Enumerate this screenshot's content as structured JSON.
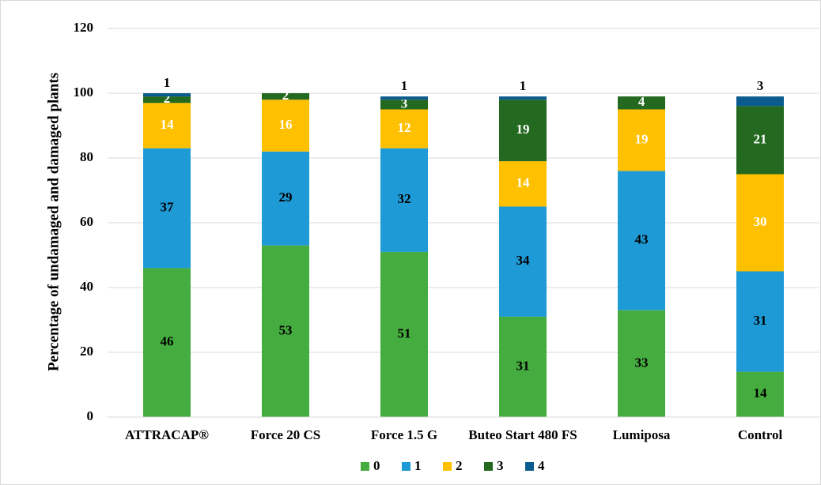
{
  "chart_data": {
    "type": "stacked_bar",
    "ylabel": "Percentage of undamaged and damaged plants",
    "categories": [
      "ATTRACAP®",
      "Force 20 CS",
      "Force 1.5 G",
      "Buteo Start 480 FS",
      "Lumiposa",
      "Control"
    ],
    "series": [
      {
        "name": "0",
        "color": "#45ac3f",
        "values": [
          46,
          53,
          51,
          31,
          33,
          14
        ]
      },
      {
        "name": "1",
        "color": "#1e9ad6",
        "values": [
          37,
          29,
          32,
          34,
          43,
          31
        ]
      },
      {
        "name": "2",
        "color": "#ffc000",
        "values": [
          14,
          16,
          12,
          14,
          19,
          30
        ]
      },
      {
        "name": "3",
        "color": "#23691f",
        "values": [
          2,
          2,
          3,
          19,
          4,
          21
        ]
      },
      {
        "name": "4",
        "color": "#0b5c8e",
        "values": [
          1,
          0,
          1,
          1,
          0,
          3
        ]
      }
    ],
    "ylim": [
      0,
      120
    ],
    "yticks": [
      0,
      20,
      40,
      60,
      80,
      100,
      120
    ],
    "grid": true,
    "legend": "bottom"
  }
}
